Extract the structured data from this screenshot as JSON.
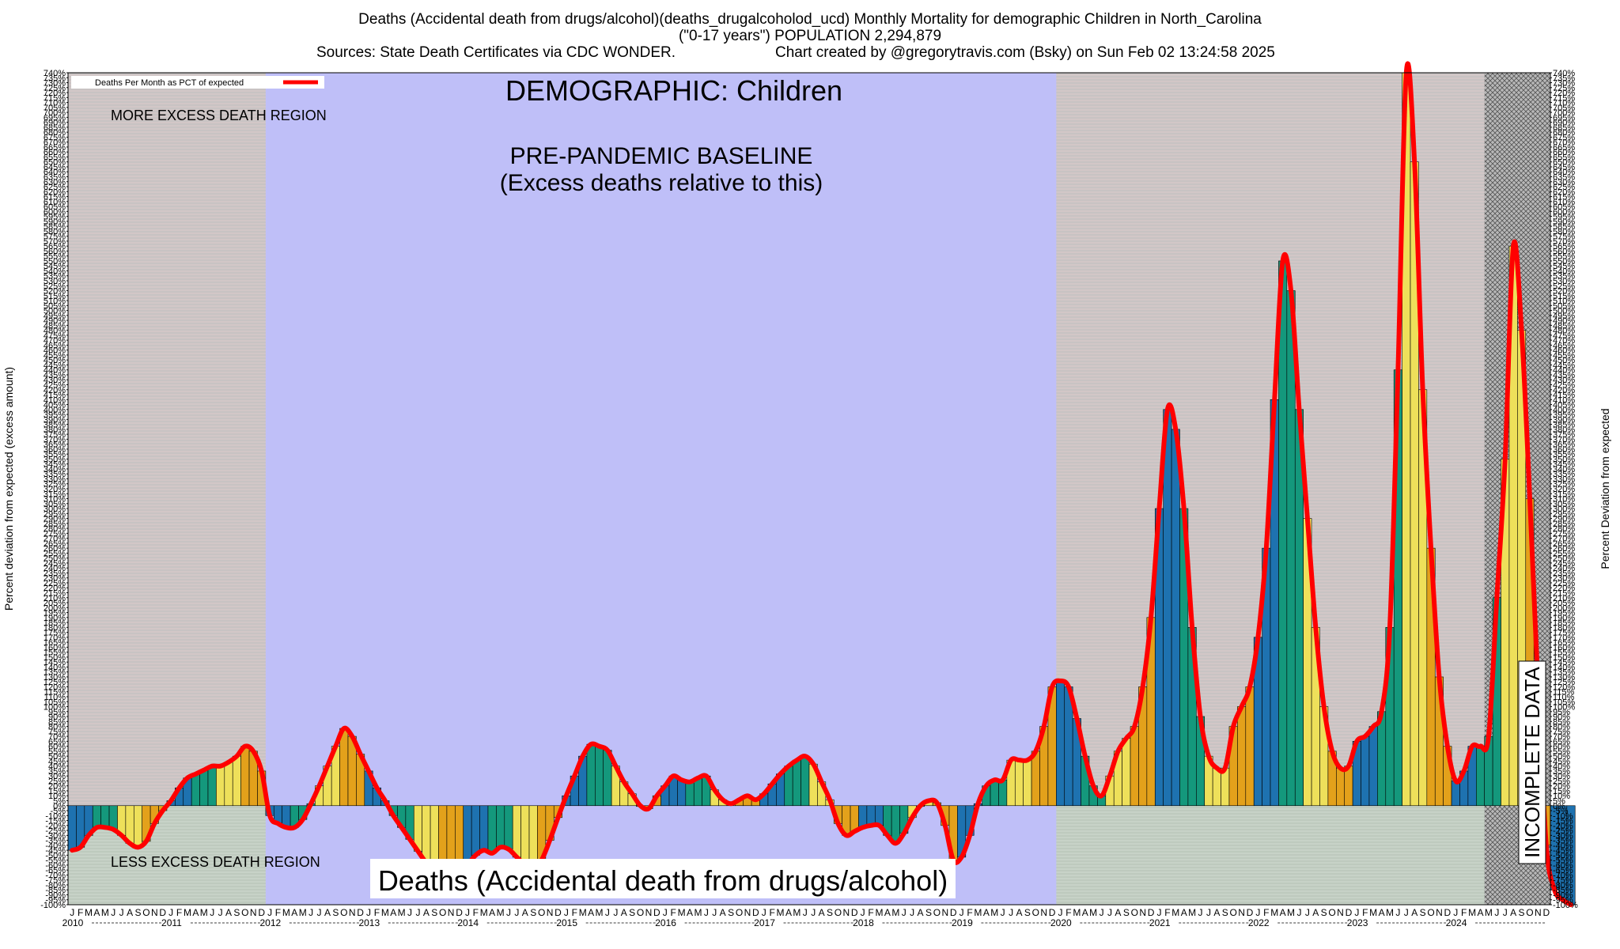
{
  "title": {
    "line1": "Deaths (Accidental death from drugs/alcohol)(deaths_drugalcoholod_ucd) Monthly Mortality for demographic Children in North_Carolina",
    "line2": "(\"0-17 years\") POPULATION 2,294,879",
    "sources": "Sources: State Death Certificates via CDC WONDER.",
    "credit": "Chart created by @gregorytravis.com (Bsky) on Sun Feb 02 13:24:58 2025"
  },
  "colors": {
    "excess_region": "#d2c7c7",
    "excess_stripe": "#bfbfbf",
    "baseline_region": "#bfbff8",
    "deficit_region": "#c7d2c7",
    "incomplete_region": "#b8b8b8",
    "line": "#ff0000",
    "bar_blue": "#1e72b0",
    "bar_green": "#14987c",
    "bar_yellow": "#eee05a",
    "bar_orange": "#e3a11b"
  },
  "chart_data": {
    "type": "bar",
    "title": "DEMOGRAPHIC: Children",
    "subtitle": "Deaths (Accidental death from drugs/alcohol)",
    "ylabel_left": "Percent deviation from expected (excess amount)",
    "ylabel_right": "Percent Deviation from expected",
    "ylim": [
      -100,
      740
    ],
    "ytick_step": 5,
    "y_ticks": [
      "740%",
      "735%",
      "730%",
      "725%",
      "720%",
      "715%",
      "710%",
      "705%",
      "700%",
      "695%",
      "690%",
      "685%",
      "680%",
      "675%",
      "670%",
      "665%",
      "660%",
      "655%",
      "650%",
      "645%",
      "640%",
      "635%",
      "630%",
      "625%",
      "620%",
      "615%",
      "610%",
      "605%",
      "600%",
      "595%",
      "590%",
      "585%",
      "580%",
      "575%",
      "570%",
      "565%",
      "560%",
      "555%",
      "550%",
      "545%",
      "540%",
      "535%",
      "530%",
      "525%",
      "520%",
      "515%",
      "510%",
      "505%",
      "500%",
      "495%",
      "490%",
      "485%",
      "480%",
      "475%",
      "470%",
      "465%",
      "460%",
      "455%",
      "450%",
      "445%",
      "440%",
      "435%",
      "430%",
      "425%",
      "420%",
      "415%",
      "410%",
      "405%",
      "400%",
      "395%",
      "390%",
      "385%",
      "380%",
      "375%",
      "370%",
      "365%",
      "360%",
      "355%",
      "350%",
      "345%",
      "340%",
      "335%",
      "330%",
      "325%",
      "320%",
      "315%",
      "310%",
      "305%",
      "300%",
      "295%",
      "290%",
      "285%",
      "280%",
      "275%",
      "270%",
      "265%",
      "260%",
      "255%",
      "250%",
      "245%",
      "240%",
      "235%",
      "230%",
      "225%",
      "220%",
      "215%",
      "210%",
      "205%",
      "200%",
      "195%",
      "190%",
      "185%",
      "180%",
      "175%",
      "170%",
      "165%",
      "160%",
      "155%",
      "150%",
      "145%",
      "140%",
      "135%",
      "130%",
      "125%",
      "120%",
      "115%",
      "110%",
      "105%",
      "100%",
      "95%",
      "90%",
      "85%",
      "80%",
      "75%",
      "70%",
      "65%",
      "60%",
      "55%",
      "50%",
      "45%",
      "40%",
      "35%",
      "30%",
      "25%",
      "20%",
      "15%",
      "10%",
      "5%",
      "0%",
      "-5%",
      "-10%",
      "-15%",
      "-20%",
      "-25%",
      "-30%",
      "-35%",
      "-40%",
      "-45%",
      "-50%",
      "-55%",
      "-60%",
      "-65%",
      "-70%",
      "-75%",
      "-80%",
      "-85%",
      "-90%",
      "-95%",
      "-100%"
    ],
    "legend": {
      "label": "Deaths Per Month as PCT of expected",
      "position": "top-left"
    },
    "annotations": {
      "more_excess": "MORE EXCESS DEATH REGION",
      "less_excess": "LESS EXCESS DEATH REGION",
      "baseline_line1": "PRE-PANDEMIC BASELINE",
      "baseline_line2": "(Excess deaths relative to this)",
      "incomplete": "INCOMPLETE DATA"
    },
    "month_letters": [
      "J",
      "F",
      "M",
      "A",
      "M",
      "J",
      "J",
      "A",
      "S",
      "O",
      "N",
      "D"
    ],
    "years": [
      "2010",
      "2011",
      "2012",
      "2013",
      "2014",
      "2015",
      "2016",
      "2017",
      "2018",
      "2019",
      "2020",
      "2021",
      "2022",
      "2023",
      "2024"
    ],
    "baseline_years": [
      "2012",
      "2013",
      "2014",
      "2015",
      "2016",
      "2017",
      "2018",
      "2019"
    ],
    "incomplete_from": "2024-05",
    "values": [
      -45,
      -42,
      -30,
      -22,
      -22,
      -24,
      -30,
      -38,
      -42,
      -36,
      -18,
      -5,
      5,
      18,
      28,
      32,
      36,
      40,
      40,
      44,
      50,
      60,
      55,
      35,
      -10,
      -18,
      -22,
      -22,
      -14,
      2,
      20,
      40,
      60,
      78,
      70,
      52,
      35,
      18,
      5,
      -10,
      -22,
      -34,
      -46,
      -58,
      -68,
      -75,
      -78,
      -70,
      -60,
      -50,
      -45,
      -48,
      -42,
      -44,
      -52,
      -60,
      -65,
      -55,
      -35,
      -12,
      10,
      30,
      50,
      62,
      60,
      56,
      40,
      24,
      12,
      0,
      -3,
      10,
      20,
      30,
      26,
      24,
      28,
      30,
      16,
      6,
      2,
      6,
      10,
      6,
      12,
      22,
      32,
      40,
      46,
      50,
      42,
      24,
      6,
      -18,
      -30,
      -26,
      -22,
      -20,
      -20,
      -30,
      -38,
      -28,
      -12,
      0,
      5,
      3,
      -20,
      -55,
      -52,
      -30,
      2,
      20,
      26,
      26,
      46,
      46,
      46,
      55,
      80,
      120,
      126,
      120,
      88,
      50,
      20,
      10,
      30,
      55,
      68,
      80,
      120,
      190,
      300,
      400,
      380,
      300,
      180,
      90,
      50,
      38,
      38,
      80,
      100,
      120,
      170,
      260,
      410,
      550,
      520,
      400,
      290,
      180,
      100,
      55,
      38,
      40,
      65,
      70,
      80,
      95,
      180,
      440,
      740,
      650,
      420,
      260,
      130,
      60,
      25,
      35,
      60,
      60,
      70,
      210,
      350,
      565,
      480,
      310,
      120,
      -40,
      -85,
      -95,
      -100
    ]
  }
}
